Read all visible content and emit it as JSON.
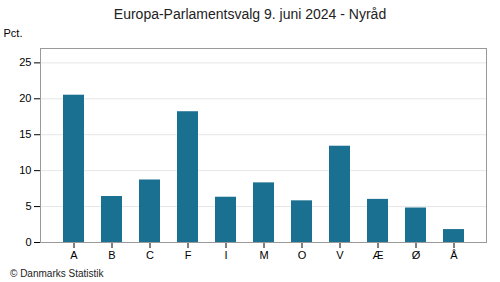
{
  "chart_data": {
    "type": "bar",
    "title": "Europa-Parlamentsvalg 9. juni 2024 - Nyråd",
    "categories": [
      "A",
      "B",
      "C",
      "F",
      "I",
      "M",
      "O",
      "V",
      "Æ",
      "Ø",
      "Å"
    ],
    "values": [
      20.5,
      6.4,
      8.7,
      18.2,
      6.3,
      8.3,
      5.8,
      13.4,
      6.0,
      4.8,
      1.8
    ],
    "color": "#1a7090",
    "ylabel": "Pct.",
    "ylim": [
      0,
      27
    ],
    "yticks": [
      0,
      5,
      10,
      15,
      20,
      25
    ],
    "grid": true,
    "caption": "© Danmarks Statistik"
  }
}
